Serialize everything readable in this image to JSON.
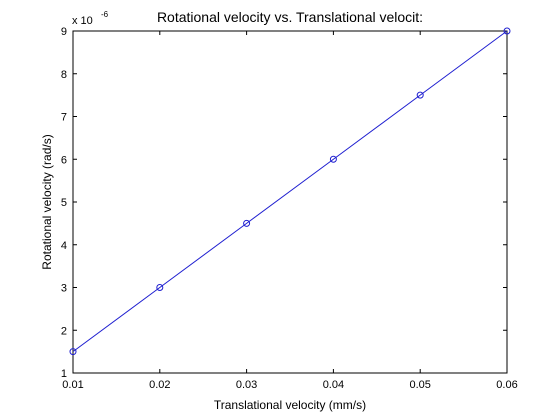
{
  "chart_data": {
    "type": "line",
    "title": "Rotational velocity vs. Translational velocit:",
    "xlabel": "Translational velocity (mm/s)",
    "ylabel": "Rotational velocity (rad/s)",
    "y_exponent_base": "x 10",
    "y_exponent_power": "-6",
    "xlim": [
      0.01,
      0.06
    ],
    "ylim": [
      1,
      9
    ],
    "x_ticks": [
      "0.01",
      "0.02",
      "0.03",
      "0.04",
      "0.05",
      "0.06"
    ],
    "y_ticks": [
      "1",
      "2",
      "3",
      "4",
      "5",
      "6",
      "7",
      "8",
      "9"
    ],
    "grid": false,
    "marker": "circle",
    "line_color": "#1f1fd0",
    "x": [
      0.01,
      0.02,
      0.03,
      0.04,
      0.05,
      0.06
    ],
    "y": [
      1.5,
      3.0,
      4.5,
      6.0,
      7.5,
      9.0
    ]
  }
}
